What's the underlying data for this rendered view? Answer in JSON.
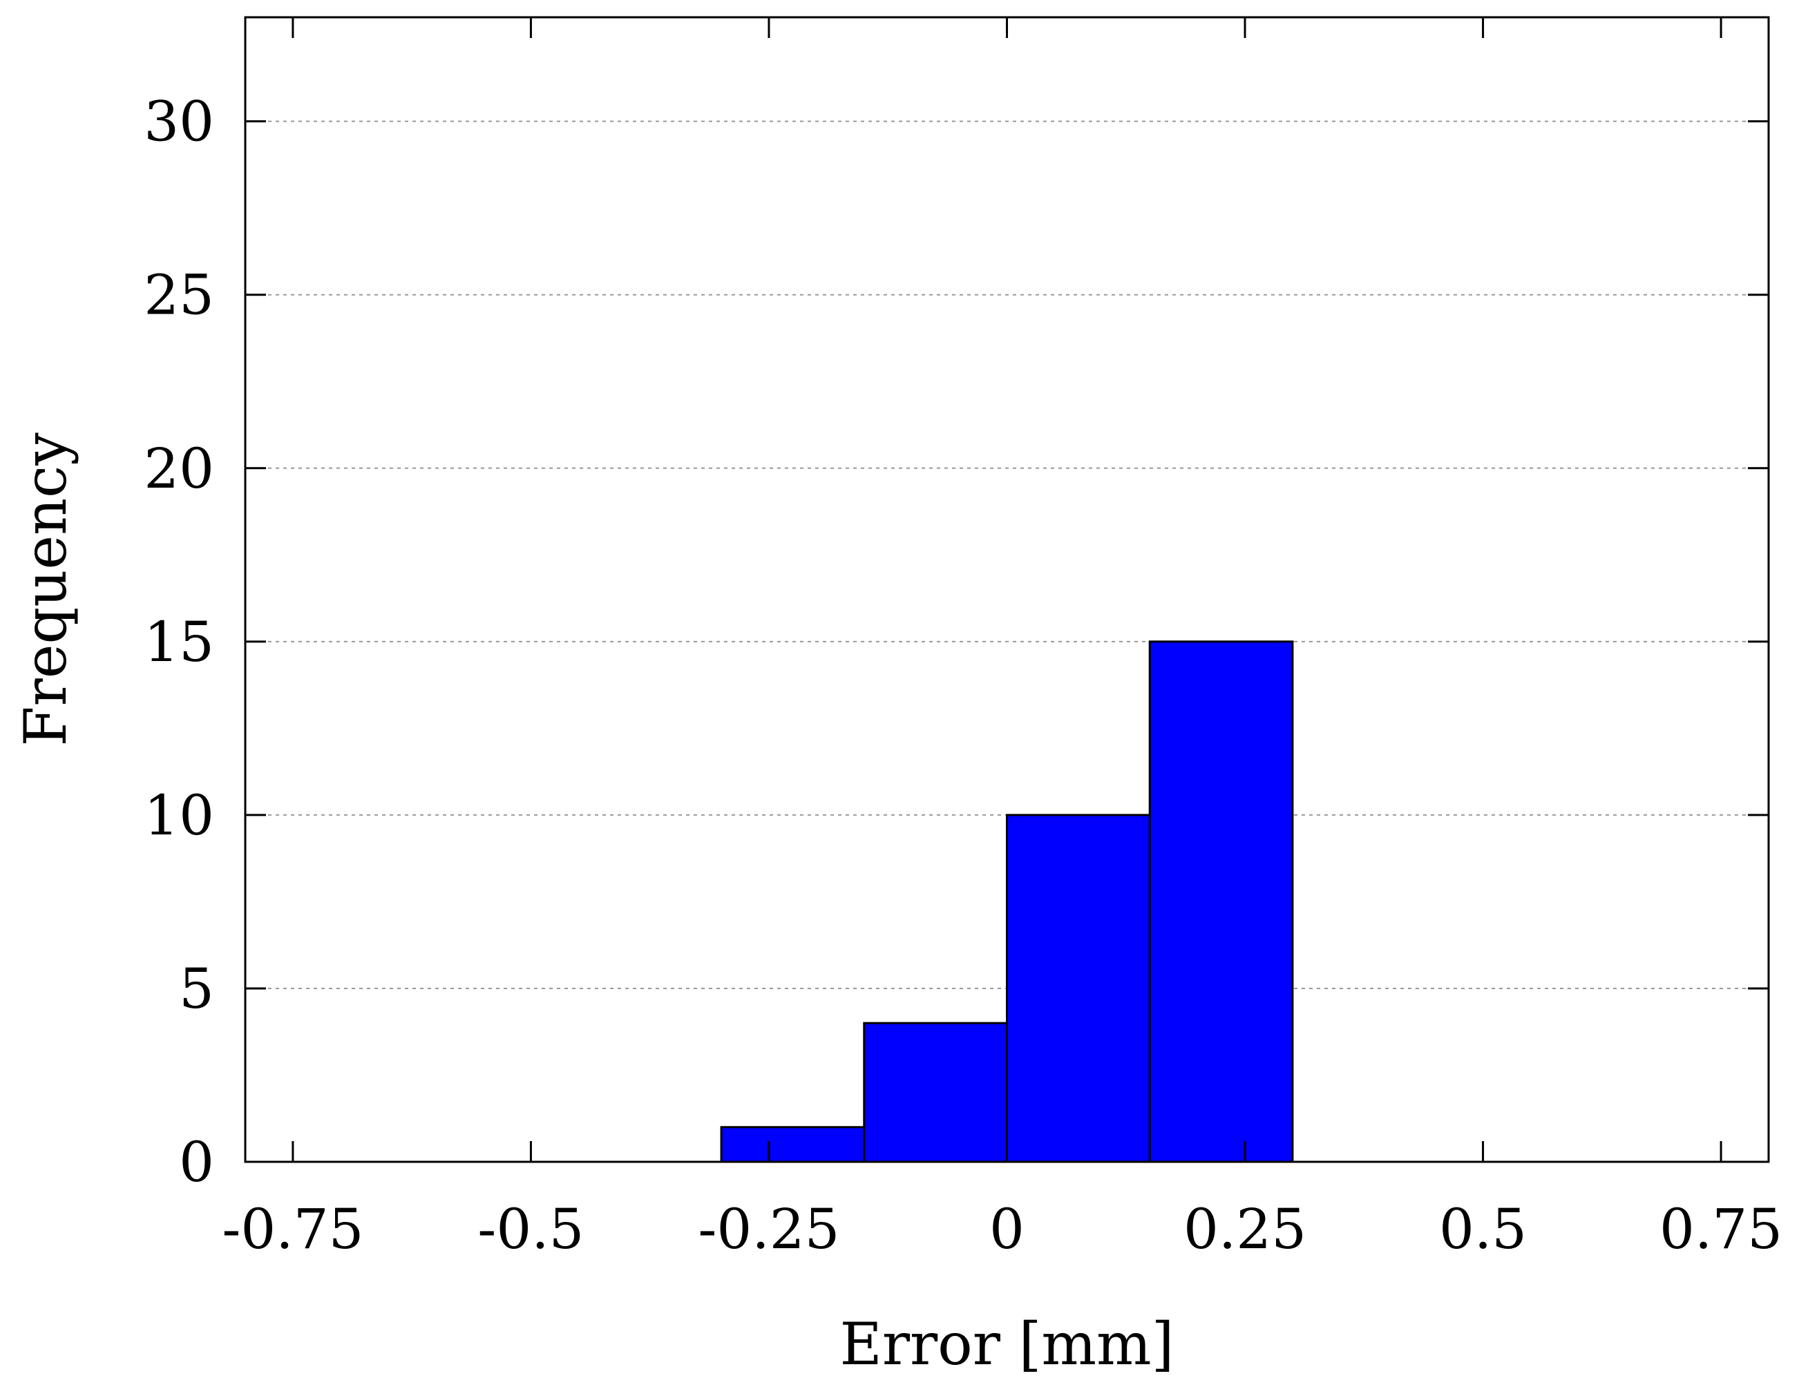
{
  "chart_data": {
    "type": "bar",
    "subtype": "histogram",
    "xlabel": "Error [mm]",
    "ylabel": "Frequency",
    "xlim": [
      -0.8,
      0.8
    ],
    "ylim": [
      0,
      33
    ],
    "x_ticks": [
      -0.75,
      -0.5,
      -0.25,
      0,
      0.25,
      0.5,
      0.75
    ],
    "x_tick_labels": [
      "-0.75",
      "-0.5",
      "-0.25",
      "0",
      "0.25",
      "0.5",
      "0.75"
    ],
    "y_ticks": [
      0,
      5,
      10,
      15,
      20,
      25,
      30
    ],
    "y_tick_labels": [
      "0",
      "5",
      "10",
      "15",
      "20",
      "25",
      "30"
    ],
    "grid": "horizontal-dashed",
    "bins": [
      {
        "x0": -0.3,
        "x1": -0.15,
        "value": 1
      },
      {
        "x0": -0.15,
        "x1": 0.0,
        "value": 4
      },
      {
        "x0": 0.0,
        "x1": 0.15,
        "value": 10
      },
      {
        "x0": 0.15,
        "x1": 0.3,
        "value": 15
      }
    ],
    "bar_color": "#0000ff"
  }
}
